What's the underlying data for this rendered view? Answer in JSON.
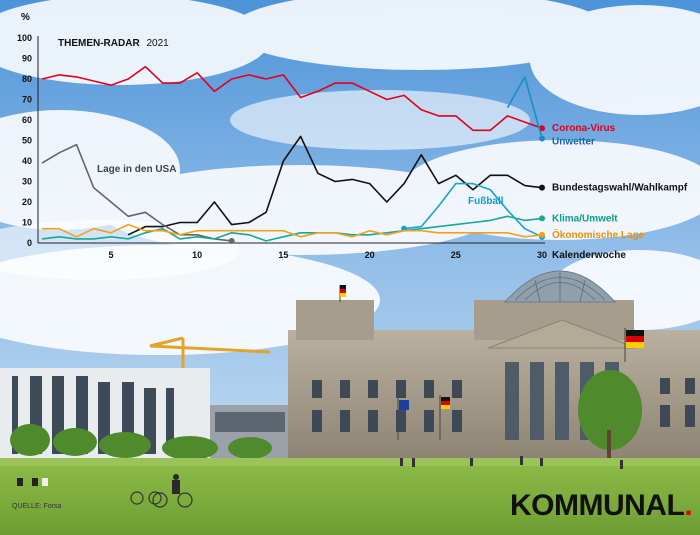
{
  "chart_data": {
    "type": "line",
    "title": "THEMEN-RADAR",
    "title_year": "2021",
    "y_unit": "%",
    "ylim": [
      0,
      100
    ],
    "y_ticks": [
      0,
      10,
      20,
      30,
      40,
      50,
      60,
      70,
      80,
      90,
      100
    ],
    "xlim": [
      1,
      30
    ],
    "x_ticks": [
      5,
      10,
      15,
      20,
      25,
      30
    ],
    "xlabel": "Kalenderwoche",
    "grid": false,
    "series": [
      {
        "name": "Corona-Virus",
        "color": "#e2001a",
        "label_color": "#e2001a",
        "end_marker": true,
        "points": [
          [
            1,
            80
          ],
          [
            2,
            82
          ],
          [
            3,
            81
          ],
          [
            4,
            79
          ],
          [
            5,
            77
          ],
          [
            6,
            80
          ],
          [
            7,
            86
          ],
          [
            8,
            78
          ],
          [
            9,
            78
          ],
          [
            10,
            83
          ],
          [
            11,
            74
          ],
          [
            12,
            80
          ],
          [
            13,
            82
          ],
          [
            14,
            80
          ],
          [
            15,
            82
          ],
          [
            16,
            71
          ],
          [
            17,
            74
          ],
          [
            18,
            78
          ],
          [
            19,
            78
          ],
          [
            20,
            74
          ],
          [
            21,
            70
          ],
          [
            22,
            72
          ],
          [
            23,
            65
          ],
          [
            24,
            62
          ],
          [
            25,
            62
          ],
          [
            26,
            55
          ],
          [
            27,
            55
          ],
          [
            28,
            62
          ],
          [
            29,
            59
          ],
          [
            30,
            56
          ]
        ]
      },
      {
        "name": "Unwetter",
        "color": "#1a8fc4",
        "label_color": "#1565a8",
        "end_marker": true,
        "points": [
          [
            28,
            66
          ],
          [
            29,
            81
          ],
          [
            30,
            51
          ]
        ]
      },
      {
        "name": "Bundestagswahl/Wahlkampf",
        "color": "#111111",
        "label_color": "#111111",
        "end_marker": true,
        "points": [
          [
            6,
            4
          ],
          [
            7,
            8
          ],
          [
            8,
            8
          ],
          [
            9,
            10
          ],
          [
            10,
            10
          ],
          [
            11,
            20
          ],
          [
            12,
            9
          ],
          [
            13,
            10
          ],
          [
            14,
            15
          ],
          [
            15,
            40
          ],
          [
            16,
            52
          ],
          [
            17,
            34
          ],
          [
            18,
            30
          ],
          [
            19,
            31
          ],
          [
            20,
            29
          ],
          [
            21,
            20
          ],
          [
            22,
            29
          ],
          [
            23,
            43
          ],
          [
            24,
            29
          ],
          [
            25,
            33
          ],
          [
            26,
            26
          ],
          [
            27,
            33
          ],
          [
            28,
            33
          ],
          [
            29,
            28
          ],
          [
            30,
            27
          ]
        ]
      },
      {
        "name": "Lage in den USA",
        "color": "#666666",
        "label_color": "#444444",
        "end_marker": true,
        "points": [
          [
            1,
            39
          ],
          [
            2,
            44
          ],
          [
            3,
            48
          ],
          [
            4,
            27
          ],
          [
            5,
            20
          ],
          [
            6,
            13
          ],
          [
            7,
            15
          ],
          [
            8,
            9
          ],
          [
            9,
            4
          ],
          [
            10,
            4
          ],
          [
            11,
            2
          ],
          [
            12,
            1
          ]
        ]
      },
      {
        "name": "Fußball",
        "color": "#19a1d6",
        "label_color": "#1399d2",
        "end_marker": true,
        "points": [
          [
            22,
            7
          ],
          [
            23,
            8
          ],
          [
            24,
            18
          ],
          [
            25,
            29
          ],
          [
            26,
            29
          ],
          [
            27,
            26
          ],
          [
            28,
            16
          ],
          [
            29,
            7
          ],
          [
            30,
            3
          ]
        ]
      },
      {
        "name": "Klima/Umwelt",
        "color": "#16a899",
        "label_color": "#0f9d8e",
        "end_marker": true,
        "points": [
          [
            1,
            2
          ],
          [
            2,
            3
          ],
          [
            3,
            2
          ],
          [
            4,
            2
          ],
          [
            5,
            3
          ],
          [
            6,
            2
          ],
          [
            7,
            5
          ],
          [
            8,
            7
          ],
          [
            9,
            2
          ],
          [
            10,
            3
          ],
          [
            11,
            2
          ],
          [
            12,
            5
          ],
          [
            13,
            4
          ],
          [
            14,
            1
          ],
          [
            15,
            3
          ],
          [
            16,
            5
          ],
          [
            17,
            5
          ],
          [
            18,
            5
          ],
          [
            19,
            4
          ],
          [
            20,
            4
          ],
          [
            21,
            5
          ],
          [
            22,
            6
          ],
          [
            23,
            7
          ],
          [
            24,
            8
          ],
          [
            25,
            9
          ],
          [
            26,
            10
          ],
          [
            27,
            11
          ],
          [
            28,
            13
          ],
          [
            29,
            11
          ],
          [
            30,
            12
          ]
        ]
      },
      {
        "name": "Ökonomische Lage",
        "color": "#f0a21e",
        "label_color": "#e8900c",
        "end_marker": true,
        "points": [
          [
            1,
            7
          ],
          [
            2,
            7
          ],
          [
            3,
            3
          ],
          [
            4,
            7
          ],
          [
            5,
            5
          ],
          [
            6,
            9
          ],
          [
            7,
            6
          ],
          [
            8,
            6
          ],
          [
            9,
            4
          ],
          [
            10,
            6
          ],
          [
            11,
            6
          ],
          [
            12,
            6
          ],
          [
            13,
            6
          ],
          [
            14,
            6
          ],
          [
            15,
            6
          ],
          [
            16,
            3
          ],
          [
            17,
            5
          ],
          [
            18,
            5
          ],
          [
            19,
            3
          ],
          [
            20,
            6
          ],
          [
            21,
            4
          ],
          [
            22,
            6
          ],
          [
            23,
            6
          ],
          [
            24,
            5
          ],
          [
            25,
            5
          ],
          [
            26,
            5
          ],
          [
            27,
            5
          ],
          [
            28,
            5
          ],
          [
            29,
            3
          ],
          [
            30,
            4
          ]
        ]
      }
    ]
  },
  "footer": {
    "source": "QUELLE: Forsa",
    "brand": "KOMMUNAL",
    "brand_dot": "."
  },
  "colors": {
    "sky_top": "#4d93d8",
    "grass": "#88b548",
    "brand_accent": "#e2001a"
  }
}
